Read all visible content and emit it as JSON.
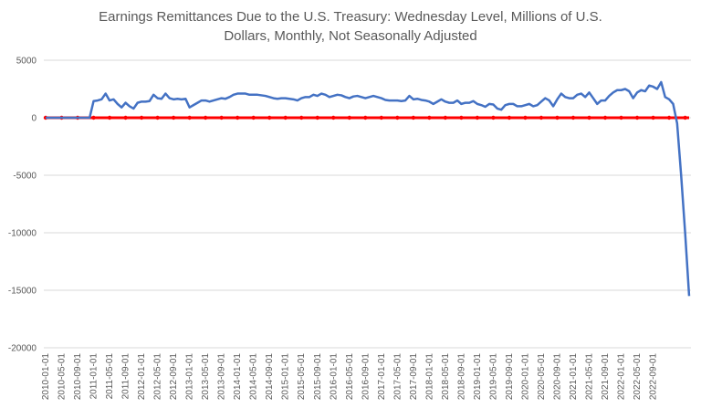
{
  "chart_data": {
    "type": "line",
    "title_lines": [
      "Earnings Remittances Due to the U.S. Treasury: Wednesday Level, Millions of U.S.",
      "Dollars, Monthly, Not Seasonally Adjusted"
    ],
    "ylim": [
      -20000,
      5000
    ],
    "yticks": [
      5000,
      0,
      -5000,
      -10000,
      -15000,
      -20000
    ],
    "grid": "horizontal",
    "legend": "none",
    "xtick_labels": [
      "2010-01-01",
      "2010-05-01",
      "2010-09-01",
      "2011-01-01",
      "2011-05-01",
      "2011-09-01",
      "2012-01-01",
      "2012-05-01",
      "2012-09-01",
      "2013-01-01",
      "2013-05-01",
      "2013-09-01",
      "2014-01-01",
      "2014-05-01",
      "2014-09-01",
      "2015-01-01",
      "2015-05-01",
      "2015-09-01",
      "2016-01-01",
      "2016-05-01",
      "2016-09-01",
      "2017-01-01",
      "2017-05-01",
      "2017-09-01",
      "2018-01-01",
      "2018-05-01",
      "2018-09-01",
      "2019-01-01",
      "2019-05-01",
      "2019-09-01",
      "2020-01-01",
      "2020-05-01",
      "2020-09-01",
      "2021-01-01",
      "2021-05-01",
      "2021-09-01",
      "2022-01-01",
      "2022-05-01",
      "2022-09-01"
    ],
    "series": [
      {
        "color": "#4472c4",
        "values": [
          0,
          0,
          0,
          0,
          0,
          0,
          0,
          0,
          0,
          0,
          0,
          0,
          1450,
          1500,
          1600,
          2100,
          1500,
          1600,
          1200,
          900,
          1300,
          1000,
          800,
          1300,
          1400,
          1400,
          1450,
          2000,
          1700,
          1650,
          2100,
          1700,
          1600,
          1650,
          1600,
          1650,
          900,
          1100,
          1300,
          1500,
          1500,
          1400,
          1500,
          1600,
          1700,
          1650,
          1800,
          2000,
          2100,
          2100,
          2100,
          2000,
          2000,
          2000,
          1950,
          1900,
          1800,
          1700,
          1650,
          1700,
          1700,
          1650,
          1600,
          1500,
          1700,
          1800,
          1800,
          2000,
          1900,
          2100,
          2000,
          1800,
          1900,
          2000,
          1950,
          1800,
          1700,
          1850,
          1900,
          1800,
          1700,
          1800,
          1900,
          1800,
          1700,
          1550,
          1500,
          1500,
          1500,
          1450,
          1500,
          1900,
          1600,
          1650,
          1550,
          1500,
          1400,
          1200,
          1400,
          1600,
          1400,
          1300,
          1300,
          1500,
          1200,
          1300,
          1300,
          1450,
          1200,
          1100,
          950,
          1200,
          1150,
          800,
          700,
          1100,
          1200,
          1200,
          1000,
          1000,
          1100,
          1200,
          1000,
          1100,
          1400,
          1700,
          1500,
          1000,
          1600,
          2100,
          1800,
          1700,
          1700,
          2000,
          2100,
          1800,
          2200,
          1700,
          1200,
          1500,
          1500,
          1900,
          2200,
          2400,
          2400,
          2500,
          2300,
          1700,
          2200,
          2400,
          2300,
          2800,
          2700,
          2500,
          3100,
          1800,
          1600,
          1200,
          -500,
          -5000,
          -10000,
          -15500
        ]
      },
      {
        "color": "#ff0000",
        "values": "zero-line"
      }
    ]
  }
}
